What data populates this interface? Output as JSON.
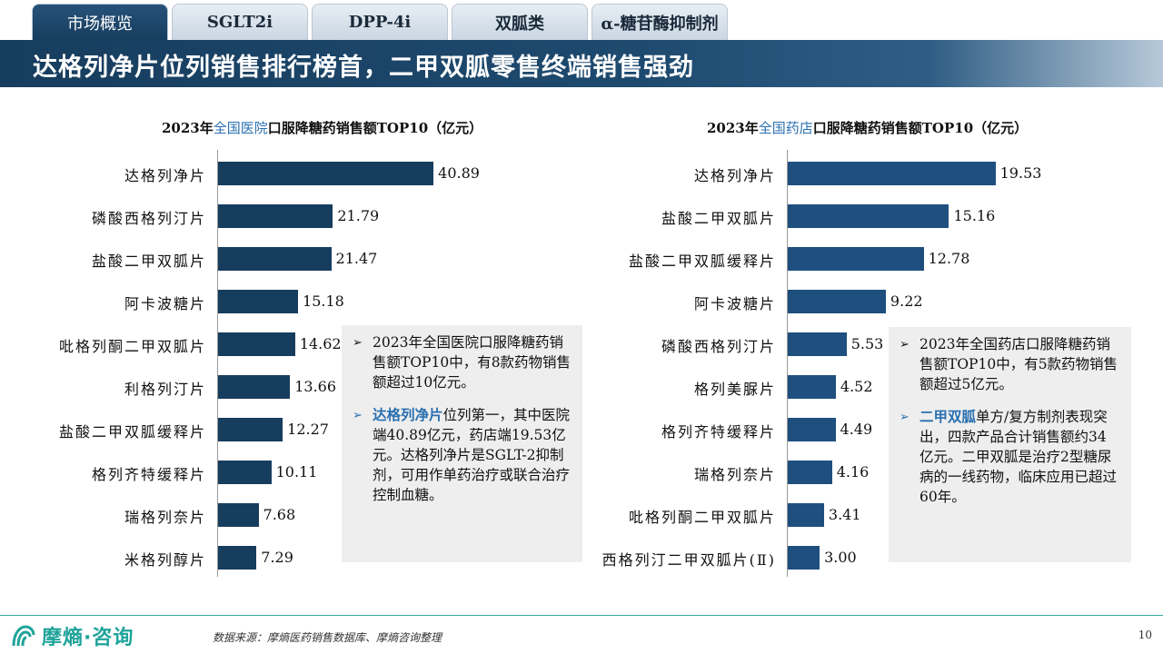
{
  "tabs": [
    {
      "label": "市场概览",
      "active": true
    },
    {
      "label": "SGLT2i",
      "active": false
    },
    {
      "label": "DPP-4i",
      "active": false
    },
    {
      "label": "双胍类",
      "active": false
    },
    {
      "label": "α-糖苷酶抑制剂",
      "active": false
    }
  ],
  "title": "达格列净片位列销售排行榜首，二甲双胍零售终端销售强劲",
  "colors": {
    "bar_left": "#173d5e",
    "bar_right": "#1e4f7f",
    "accent": "#2a6fb0",
    "teal": "#1fa39a"
  },
  "left_chart": {
    "title_prefix": "2023年",
    "title_highlight": "全国医院",
    "title_suffix": "口服降糖药销售额TOP10（亿元）"
  },
  "right_chart": {
    "title_prefix": "2023年",
    "title_highlight": "全国药店",
    "title_suffix": "口服降糖药销售额TOP10（亿元）"
  },
  "chart_data": [
    {
      "type": "bar",
      "orientation": "horizontal",
      "title": "2023年全国医院口服降糖药销售额TOP10（亿元）",
      "categories": [
        "达格列净片",
        "磷酸西格列汀片",
        "盐酸二甲双胍片",
        "阿卡波糖片",
        "吡格列酮二甲双胍片",
        "利格列汀片",
        "盐酸二甲双胍缓释片",
        "格列齐特缓释片",
        "瑞格列奈片",
        "米格列醇片"
      ],
      "values": [
        40.89,
        21.79,
        21.47,
        15.18,
        14.62,
        13.66,
        12.27,
        10.11,
        7.68,
        7.29
      ],
      "value_labels": [
        "40.89",
        "21.79",
        "21.47",
        "15.18",
        "14.62",
        "13.66",
        "12.27",
        "10.11",
        "7.68",
        "7.29"
      ],
      "xlim": [
        0,
        50
      ]
    },
    {
      "type": "bar",
      "orientation": "horizontal",
      "title": "2023年全国药店口服降糖药销售额TOP10（亿元）",
      "categories": [
        "达格列净片",
        "盐酸二甲双胍片",
        "盐酸二甲双胍缓释片",
        "阿卡波糖片",
        "磷酸西格列汀片",
        "格列美脲片",
        "格列齐特缓释片",
        "瑞格列奈片",
        "吡格列酮二甲双胍片",
        "西格列汀二甲双胍片(Ⅱ)"
      ],
      "values": [
        19.53,
        15.16,
        12.78,
        9.22,
        5.53,
        4.52,
        4.49,
        4.16,
        3.41,
        3.0
      ],
      "value_labels": [
        "19.53",
        "15.16",
        "12.78",
        "9.22",
        "5.53",
        "4.52",
        "4.49",
        "4.16",
        "3.41",
        "3.00"
      ],
      "xlim": [
        0,
        25.2
      ]
    }
  ],
  "left_note": {
    "bullet1": "2023年全国医院口服降糖药销售额TOP10中，有8款药物销售额超过10亿元。",
    "bullet2_highlight": "达格列净片",
    "bullet2_rest": "位列第一，其中医院端40.89亿元，药店端19.53亿元。达格列净片是SGLT-2抑制剂，可用作单药治疗或联合治疗控制血糖。"
  },
  "right_note": {
    "bullet1": "2023年全国药店口服降糖药销售额TOP10中，有5款药物销售额超过5亿元。",
    "bullet2_highlight": "二甲双胍",
    "bullet2_rest": "单方/复方制剂表现突出，四款产品合计销售额约34亿元。二甲双胍是治疗2型糖尿病的一线药物，临床应用已超过60年。"
  },
  "footer": {
    "logo_text": "摩熵·咨询",
    "source": "数据来源：摩熵医药销售数据库、摩熵咨询整理",
    "page": "10"
  }
}
